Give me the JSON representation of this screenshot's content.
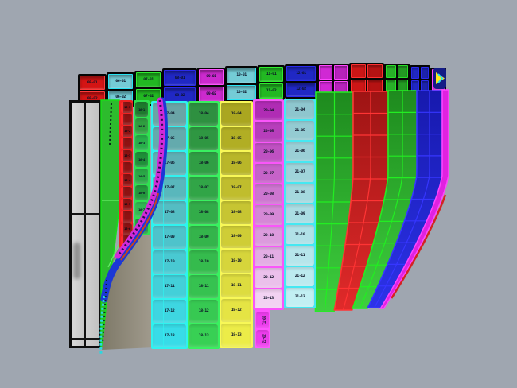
{
  "scene": {
    "background": "#9fa6b0",
    "viewport_label": "3d-paneled-surface-model"
  },
  "top_band": {
    "segments": [
      {
        "name": "band-red-1",
        "fill": "#d41414",
        "line": "#ff3a3a",
        "cells": [
          "05-01",
          "05-02"
        ],
        "wide": false
      },
      {
        "name": "band-cyan-1",
        "fill": "#74ccd6",
        "line": "#28e4f4",
        "cells": [
          "06-01",
          "06-02"
        ],
        "wide": false
      },
      {
        "name": "band-green-1",
        "fill": "#22b822",
        "line": "#30ee30",
        "cells": [
          "07-01",
          "07-02"
        ],
        "wide": false
      },
      {
        "name": "band-blue-1",
        "fill": "#2028c4",
        "line": "#2a2aee",
        "cells": [
          "08-01",
          "08-02"
        ],
        "wide": false
      },
      {
        "name": "band-magenta-1",
        "fill": "#cc2ace",
        "line": "#ff50ff",
        "cells": [
          "09-01",
          "09-02"
        ],
        "wide": false
      },
      {
        "name": "band-cyan-2",
        "fill": "#74ccd6",
        "line": "#28e4f4",
        "cells": [
          "10-01",
          "10-02"
        ],
        "wide": false
      },
      {
        "name": "band-green-2",
        "fill": "#22b822",
        "line": "#30ee30",
        "cells": [
          "11-01",
          "11-02"
        ],
        "wide": false
      },
      {
        "name": "band-blue-2",
        "fill": "#2028c4",
        "line": "#2a2aee",
        "cells": [
          "12-01",
          "12-02"
        ],
        "wide": false
      },
      {
        "name": "band-magenta-wide",
        "fill": "#d028d4",
        "line": "#ff44ff",
        "cells": [],
        "wide": true
      },
      {
        "name": "band-red-wide",
        "fill": "#cc1616",
        "line": "#ff3030",
        "cells": [],
        "wide": true
      },
      {
        "name": "band-green-wide",
        "fill": "#28b028",
        "line": "#28e028",
        "cells": [],
        "wide": true
      },
      {
        "name": "band-blue-3",
        "fill": "#2028c4",
        "line": "#2a2aee",
        "cells": [],
        "wide": true
      },
      {
        "name": "band-magenta-sliver",
        "fill": "#d028d4",
        "line": "#ff44ff",
        "cells": [],
        "wide": false
      }
    ]
  },
  "front_columns": [
    {
      "name": "column-teal",
      "fillTop": "#6aa4a6",
      "fillBottom": "#38dce8",
      "line": "#2ff2ef",
      "sub": true,
      "rows": [
        "17-04",
        "17-05",
        "17-06",
        "17-07",
        "17-08",
        "17-09",
        "17-10",
        "17-11",
        "17-12",
        "17-13"
      ]
    },
    {
      "name": "column-green",
      "fillTop": "#2e9040",
      "fillBottom": "#38d054",
      "line": "#39f060",
      "sub": false,
      "rows": [
        "18-04",
        "18-05",
        "18-06",
        "18-07",
        "18-08",
        "18-09",
        "18-10",
        "18-11",
        "18-12",
        "18-13"
      ]
    },
    {
      "name": "column-yellow",
      "fillTop": "#aaa620",
      "fillBottom": "#ecec48",
      "line": "#f8f857",
      "sub": false,
      "rows": [
        "19-04",
        "19-05",
        "19-06",
        "19-07",
        "19-08",
        "19-09",
        "19-10",
        "19-11",
        "19-12",
        "19-13"
      ]
    },
    {
      "name": "column-magenta",
      "fillTop": "#b02cb4",
      "fillBottom": "#f2d2f2",
      "line": "#fa55fa",
      "sub": false,
      "rows": [
        "20-04",
        "20-05",
        "20-06",
        "20-07",
        "20-08",
        "20-09",
        "20-10",
        "20-11",
        "20-12",
        "20-13"
      ]
    },
    {
      "name": "column-lightcyan",
      "fillTop": "#8ec6ce",
      "fillBottom": "#c2eff3",
      "line": "#45e8f2",
      "sub": false,
      "rows": [
        "21-04",
        "21-05",
        "21-06",
        "21-07",
        "21-08",
        "21-09",
        "21-10",
        "21-11",
        "21-12",
        "21-13"
      ]
    }
  ],
  "strips": {
    "red_ladder": {
      "fill": "#8e1212",
      "line": "#ee2222",
      "rung": "#ff2a2a",
      "labels": [
        "15-1",
        "",
        "15-2",
        "",
        "15-3",
        "",
        "15-4",
        "",
        "15-5",
        "",
        "15-6",
        ""
      ]
    },
    "mini_green": {
      "line": "#2fe050",
      "shades": [
        "#1d7a2d",
        "#2f9e3f",
        "#27b04a",
        "#1e8f38",
        "#2aa846",
        "#23983c",
        "#31b852",
        "#279544"
      ],
      "labels": [
        "16-1",
        "16-2",
        "16-3",
        "16-4",
        "16-5",
        "16-6",
        "16-7",
        "16-8"
      ]
    }
  },
  "grid_group": {
    "bands": [
      {
        "name": "grid-band-green-1",
        "fillTop": "#1e8a1e",
        "fillBottom": "#3ecf3e",
        "line": "#22ee22",
        "cols": 2,
        "rows": 10
      },
      {
        "name": "grid-band-red",
        "fillTop": "#9e1414",
        "fillBottom": "#e02a2a",
        "line": "#ff3434",
        "cols": 2,
        "rows": 10
      },
      {
        "name": "grid-band-green-2",
        "fillTop": "#1e8a1e",
        "fillBottom": "#3ecf3e",
        "line": "#22ee22",
        "cols": 2,
        "rows": 10
      },
      {
        "name": "grid-band-blue",
        "fillTop": "#1719ad",
        "fillBottom": "#2c33e8",
        "line": "#3636ff",
        "cols": 2,
        "rows": 10
      }
    ],
    "trim": {
      "fill": "#e022e0",
      "line": "#ff44ff"
    },
    "red_edge": "#d42222"
  },
  "tab": {
    "fill": "#ee3cee",
    "line": "#ff55ff",
    "labels": [
      "20-T1",
      "20-T2"
    ]
  },
  "rope": {
    "magenta": "#d22ad8",
    "blue": "#1b38d6",
    "speckle": "#2a0a50",
    "accent": "#cc4418",
    "tail": "#2ad8e0"
  },
  "shadow": {
    "left": "#7e7968",
    "right": "#a29c8f"
  },
  "taper": {
    "fill": "#2dbb2d",
    "line": "#18dd18",
    "mesh": "#66ee66",
    "edge_dash": "#0a2a1a"
  },
  "slab": {
    "fill": "#cccccc",
    "edge": "#0d0d0d"
  },
  "flag": {
    "patch": "#141c86",
    "arrow": "#ffe818",
    "chevron": "#25e0f0"
  }
}
